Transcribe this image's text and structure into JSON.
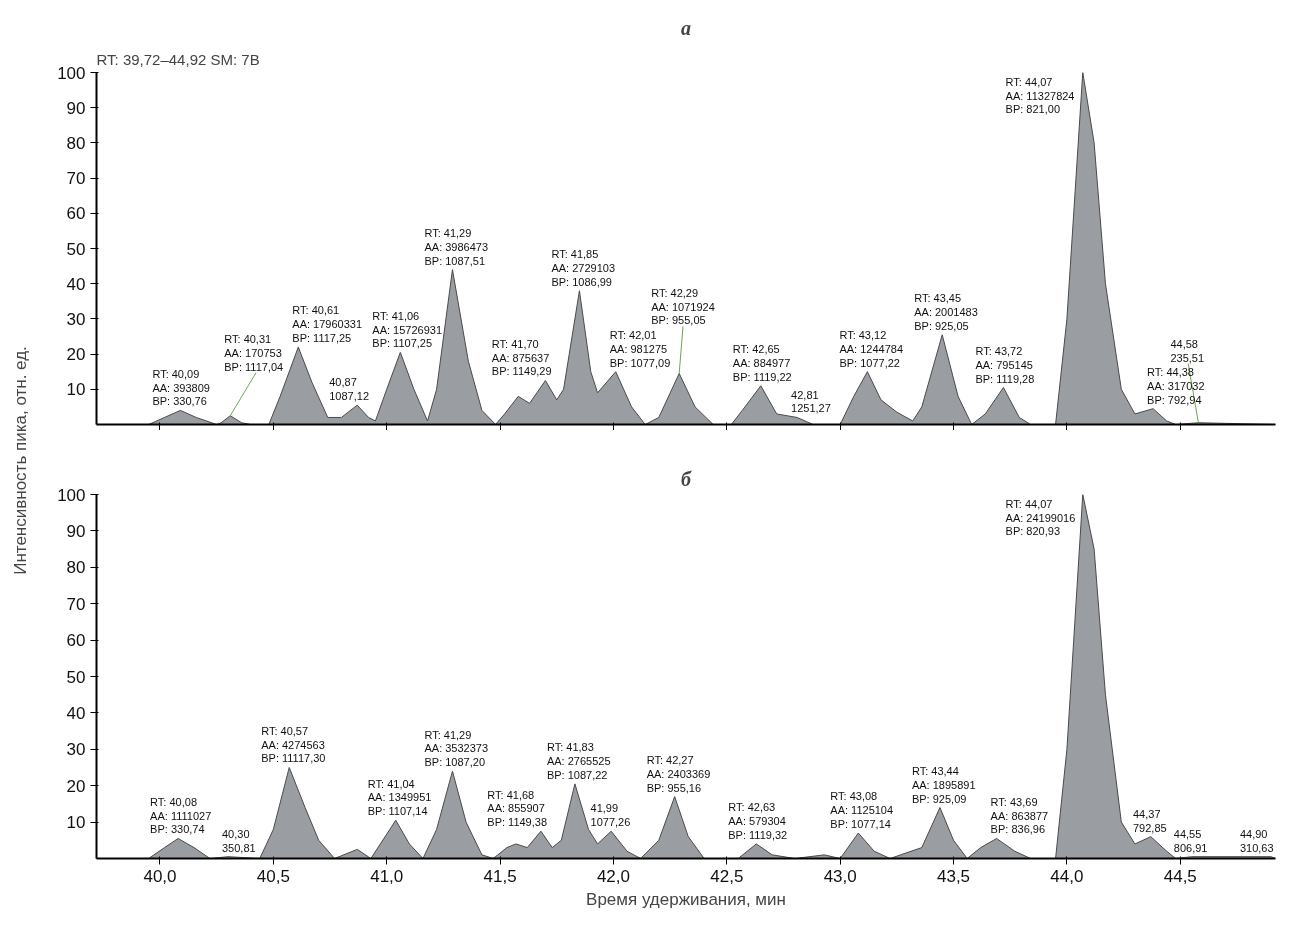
{
  "chart_data": [
    {
      "type": "area",
      "title": "а",
      "ylabel": "Интенсивность пика, отн. ед.",
      "annotations": [
        "RT: 39,72–44,92 SM: 7B",
        {
          "text": "RT: 40,09\nAA: 393809\nBP: 330,76",
          "x": 40.09,
          "y": 4
        },
        {
          "text": "RT: 40,31\nAA: 170753\nBP: 1117,04",
          "x": 40.31,
          "y": 2.5
        },
        {
          "text": "RT: 40,61\nAA: 17960331\nBP: 1117,25",
          "x": 40.61,
          "y": 22
        },
        {
          "text": "40,87\n1087,12",
          "x": 40.87,
          "y": 5.5
        },
        {
          "text": "RT: 41,06\nAA: 15726931\nBP: 1107,25",
          "x": 41.06,
          "y": 20.5
        },
        {
          "text": "RT: 41,29\nAA: 3986473\nBP: 1087,51",
          "x": 41.29,
          "y": 44
        },
        {
          "text": "RT: 41,70\nAA: 875637\nBP: 1149,29",
          "x": 41.7,
          "y": 12.5
        },
        {
          "text": "RT: 41,85\nAA: 2729103\nBP: 1086,99",
          "x": 41.85,
          "y": 38
        },
        {
          "text": "RT: 42,01\nAA: 981275\nBP: 1077,09",
          "x": 42.01,
          "y": 15
        },
        {
          "text": "RT: 42,29\nAA: 1071924\nBP: 955,05",
          "x": 42.29,
          "y": 14.5
        },
        {
          "text": "RT: 42,65\nAA: 884977\nBP: 1119,22",
          "x": 42.65,
          "y": 11
        },
        {
          "text": "42,81\n1251,27",
          "x": 42.81,
          "y": 2
        },
        {
          "text": "RT: 43,12\nAA: 1244784\nBP: 1077,22",
          "x": 43.12,
          "y": 15
        },
        {
          "text": "RT: 43,45\nAA: 2001483\nBP: 925,05",
          "x": 43.45,
          "y": 25.5
        },
        {
          "text": "RT: 43,72\nAA: 795145\nBP: 1119,28",
          "x": 43.72,
          "y": 10.5
        },
        {
          "text": "RT: 44,07\nAA: 11327824\nBP: 821,00",
          "x": 44.07,
          "y": 100
        },
        {
          "text": "RT: 44,38\nAA: 317032\nBP: 792,94",
          "x": 44.38,
          "y": 4.5
        },
        {
          "text": "44,58\n235,51",
          "x": 44.58,
          "y": 0.5
        }
      ],
      "xlim": [
        39.72,
        44.92
      ],
      "ylim": [
        0,
        100
      ],
      "xticks": [
        40,
        40.5,
        41,
        41.5,
        42,
        42.5,
        43,
        43.5,
        44,
        44.5
      ],
      "yticks": [
        10,
        20,
        30,
        40,
        50,
        60,
        70,
        80,
        90,
        100
      ],
      "tick_labels": "y",
      "grid": false,
      "series": [
        {
          "color": "#9a9ea2",
          "x": [
            39.72,
            39.95,
            40.02,
            40.09,
            40.16,
            40.25,
            40.27,
            40.31,
            40.36,
            40.4,
            40.48,
            40.53,
            40.61,
            40.67,
            40.74,
            40.8,
            40.87,
            40.92,
            40.95,
            41.0,
            41.06,
            41.12,
            41.18,
            41.22,
            41.29,
            41.36,
            41.42,
            41.48,
            41.52,
            41.58,
            41.63,
            41.7,
            41.75,
            41.78,
            41.85,
            41.9,
            41.93,
            42.01,
            42.08,
            42.14,
            42.2,
            42.29,
            42.36,
            42.44,
            42.52,
            42.58,
            42.65,
            42.72,
            42.81,
            42.88,
            43.0,
            43.06,
            43.12,
            43.18,
            43.25,
            43.32,
            43.36,
            43.45,
            43.52,
            43.58,
            43.64,
            43.72,
            43.79,
            43.84,
            43.95,
            44.0,
            44.07,
            44.12,
            44.17,
            44.24,
            44.3,
            44.38,
            44.44,
            44.48,
            44.58,
            44.92
          ],
          "values": [
            0,
            0,
            2,
            4,
            2,
            0,
            0.5,
            2.5,
            0.5,
            0,
            0,
            8,
            22,
            12,
            2,
            2,
            5.5,
            2,
            1,
            10,
            20.5,
            10,
            1,
            10,
            44,
            18,
            4,
            0,
            3,
            8,
            6,
            12.5,
            7,
            10,
            38,
            15,
            9,
            15,
            5,
            0,
            2,
            14.5,
            5,
            0,
            0,
            5,
            11,
            3,
            2,
            0,
            0,
            8,
            15,
            7,
            3.5,
            1,
            5,
            25.5,
            8,
            0,
            3,
            10.5,
            2,
            0,
            0,
            30,
            100,
            80,
            40,
            10,
            3,
            4.5,
            1,
            0,
            0.5,
            0
          ]
        }
      ]
    },
    {
      "type": "area",
      "title": "б",
      "xlabel": "Время удерживания, мин",
      "annotations": [
        {
          "text": "RT: 40,08\nAA: 1111027\nBP: 330,74",
          "x": 40.08,
          "y": 5.5
        },
        {
          "text": "40,30\n350,81",
          "x": 40.3,
          "y": 0.5
        },
        {
          "text": "RT: 40,57\nAA: 4274563\nBP: 11117,30",
          "x": 40.57,
          "y": 25
        },
        {
          "text": "RT: 41,04\nAA: 1349951\nBP: 1107,14",
          "x": 41.04,
          "y": 10.5
        },
        {
          "text": "RT: 41,29\nAA: 3532373\nBP: 1087,20",
          "x": 41.29,
          "y": 24
        },
        {
          "text": "RT: 41,68\nAA: 855907\nBP: 1149,38",
          "x": 41.68,
          "y": 7.5
        },
        {
          "text": "RT: 41,83\nAA: 2765525\nBP: 1087,22",
          "x": 41.83,
          "y": 20.5
        },
        {
          "text": "41,99\n1077,26",
          "x": 41.99,
          "y": 7.5
        },
        {
          "text": "RT: 42,27\nAA: 2403369\nBP: 955,16",
          "x": 42.27,
          "y": 17
        },
        {
          "text": "RT: 42,63\nAA: 579304\nBP: 1119,32",
          "x": 42.63,
          "y": 4
        },
        {
          "text": "RT: 43,08\nAA: 1125104\nBP: 1077,14",
          "x": 43.08,
          "y": 7
        },
        {
          "text": "RT: 43,44\nAA: 1895891\nBP: 925,09",
          "x": 43.44,
          "y": 14
        },
        {
          "text": "RT: 43,69\nAA: 863877\nBP: 836,96",
          "x": 43.69,
          "y": 5.5
        },
        {
          "text": "RT: 44,07\nAA: 24199016\nBP: 820,93",
          "x": 44.07,
          "y": 100
        },
        {
          "text": "44,37\n792,85",
          "x": 44.37,
          "y": 6
        },
        {
          "text": "44,55\n806,91",
          "x": 44.55,
          "y": 0.5
        },
        {
          "text": "44,90\n310,63",
          "x": 44.9,
          "y": 0.5
        }
      ],
      "xlim": [
        39.72,
        44.92
      ],
      "ylim": [
        0,
        100
      ],
      "xticks": [
        {
          "value": 40.0,
          "label": "40,0"
        },
        {
          "value": 40.5,
          "label": "40,5"
        },
        {
          "value": 41.0,
          "label": "41,0"
        },
        {
          "value": 41.5,
          "label": "41,5"
        },
        {
          "value": 42.0,
          "label": "42,0"
        },
        {
          "value": 42.5,
          "label": "42,5"
        },
        {
          "value": 43.0,
          "label": "43,0"
        },
        {
          "value": 43.5,
          "label": "43,5"
        },
        {
          "value": 44.0,
          "label": "44,0"
        },
        {
          "value": 44.5,
          "label": "44,5"
        }
      ],
      "yticks": [
        10,
        20,
        30,
        40,
        50,
        60,
        70,
        80,
        90,
        100
      ],
      "grid": false,
      "series": [
        {
          "color": "#9a9ea2",
          "x": [
            39.72,
            39.95,
            40.02,
            40.08,
            40.15,
            40.22,
            40.3,
            40.44,
            40.5,
            40.57,
            40.64,
            40.7,
            40.77,
            40.87,
            40.93,
            41.04,
            41.1,
            41.16,
            41.22,
            41.29,
            41.35,
            41.42,
            41.47,
            41.53,
            41.57,
            41.62,
            41.68,
            41.73,
            41.77,
            41.83,
            41.89,
            41.93,
            41.99,
            42.06,
            42.12,
            42.2,
            42.27,
            42.33,
            42.4,
            42.55,
            42.63,
            42.7,
            42.8,
            42.93,
            43.0,
            43.08,
            43.15,
            43.22,
            43.36,
            43.44,
            43.5,
            43.56,
            43.62,
            43.69,
            43.77,
            43.84,
            43.95,
            44.0,
            44.07,
            44.12,
            44.17,
            44.24,
            44.3,
            44.37,
            44.44,
            44.48,
            44.55,
            44.9,
            44.92
          ],
          "values": [
            0,
            0,
            3,
            5.5,
            3,
            0,
            0.5,
            0,
            8,
            25,
            14,
            5,
            0,
            2.5,
            0,
            10.5,
            4,
            0,
            8,
            24,
            10,
            1,
            0,
            3,
            4,
            3,
            7.5,
            3,
            5,
            20.5,
            8,
            4,
            7.5,
            2,
            0,
            5,
            17,
            6,
            0,
            0,
            4,
            1,
            0,
            1,
            0,
            7,
            2,
            0,
            3,
            14,
            5,
            0,
            3,
            5.5,
            2,
            0,
            0,
            30,
            100,
            85,
            45,
            10,
            4,
            6,
            2,
            0,
            0.5,
            0.5,
            0
          ]
        }
      ]
    }
  ]
}
